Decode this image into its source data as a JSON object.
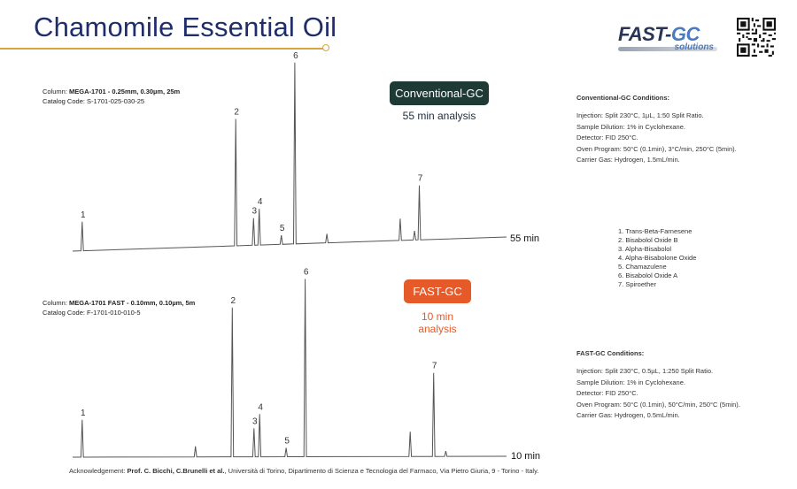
{
  "title": "Chamomile Essential Oil",
  "logo": {
    "main_left": "FAST-",
    "main_right": "GC",
    "sub": "solutions"
  },
  "conventional": {
    "column_label": "Column: ",
    "column_value": "MEGA-1701 - 0.25mm, 0.30µm, 25m",
    "catalog": "Catalog Code: S-1701-025-030-25",
    "badge": "Conventional-GC",
    "analysis": "55 min analysis",
    "time_label": "55 min"
  },
  "fast": {
    "column_label": "Column: ",
    "column_value": "MEGA-1701 FAST - 0.10mm, 0.10µm, 5m",
    "catalog": "Catalog Code: F-1701-010-010-5",
    "badge": "FAST-GC",
    "analysis": "10 min analysis",
    "time_label": "10 min"
  },
  "conditions_conventional": {
    "heading": "Conventional-GC Conditions:",
    "lines": [
      "Injection: Split 230°C, 1µL, 1:50 Split Ratio.",
      "Sample Dilution: 1% in Cyclohexane.",
      "Detector: FID 250°C.",
      "Oven Program: 50°C (0.1min), 3°C/min, 250°C (5min).",
      "Carrier Gas: Hydrogen, 1.5mL/min."
    ]
  },
  "conditions_fast": {
    "heading": "FAST-GC Conditions:",
    "lines": [
      "Injection: Split 230°C, 0.5µL, 1:250 Split Ratio.",
      "Sample Dilution: 1% in Cyclohexane.",
      "Detector: FID 250°C.",
      "Oven Program: 50°C (0.1min), 50°C/min, 250°C (5min).",
      "Carrier Gas: Hydrogen, 0.5mL/min."
    ]
  },
  "peak_legend": [
    "1. Trans-Beta-Farnesene",
    "2. Bisabolol Oxide B",
    "3. Alpha-Bisabolol",
    "4. Alpha-Bisabolone Oxide",
    "5. Chamazulene",
    "6. Bisabolol Oxide A",
    "7. Spiroether"
  ],
  "acknowledgement": {
    "prefix": "Acknowledgement: ",
    "names": "Prof. C. Bicchi, C.Brunelli et al.",
    "rest": ", Università di Torino, Dipartimento di Scienza e Tecnologia del Farmaco, Via Pietro Giuria, 9 - Torino - Italy."
  },
  "chart_data": [
    {
      "type": "line",
      "name": "Conventional-GC chromatogram",
      "x_unit": "relative retention position",
      "peaks": [
        {
          "label": "1",
          "x": 0.022,
          "height": 0.16
        },
        {
          "label": "2",
          "x": 0.376,
          "height": 0.7
        },
        {
          "label": "3",
          "x": 0.417,
          "height": 0.15
        },
        {
          "label": "4",
          "x": 0.43,
          "height": 0.2
        },
        {
          "label": "5",
          "x": 0.481,
          "height": 0.05
        },
        {
          "label": "6",
          "x": 0.512,
          "height": 1.0
        },
        {
          "label": "",
          "x": 0.586,
          "height": 0.05
        },
        {
          "label": "",
          "x": 0.755,
          "height": 0.12
        },
        {
          "label": "",
          "x": 0.788,
          "height": 0.05
        },
        {
          "label": "7",
          "x": 0.799,
          "height": 0.3
        }
      ]
    },
    {
      "type": "line",
      "name": "FAST-GC chromatogram",
      "x_unit": "relative retention position",
      "peaks": [
        {
          "label": "1",
          "x": 0.022,
          "height": 0.21
        },
        {
          "label": "",
          "x": 0.283,
          "height": 0.06
        },
        {
          "label": "2",
          "x": 0.368,
          "height": 0.84
        },
        {
          "label": "3",
          "x": 0.418,
          "height": 0.16
        },
        {
          "label": "4",
          "x": 0.431,
          "height": 0.24
        },
        {
          "label": "5",
          "x": 0.492,
          "height": 0.05
        },
        {
          "label": "6",
          "x": 0.536,
          "height": 1.0
        },
        {
          "label": "",
          "x": 0.778,
          "height": 0.14
        },
        {
          "label": "7",
          "x": 0.832,
          "height": 0.47
        },
        {
          "label": "",
          "x": 0.86,
          "height": 0.03
        }
      ]
    }
  ]
}
